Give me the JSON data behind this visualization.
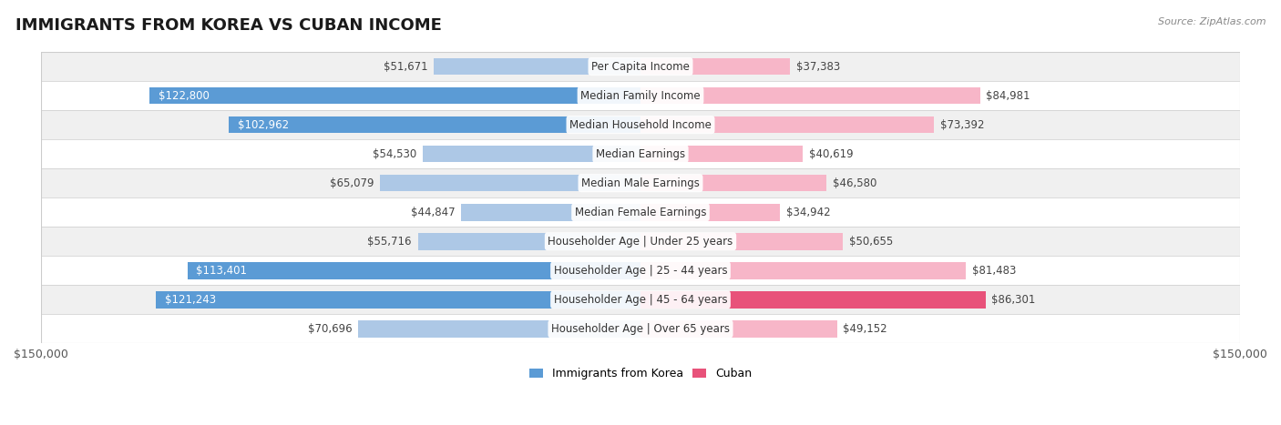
{
  "title": "IMMIGRANTS FROM KOREA VS CUBAN INCOME",
  "source": "Source: ZipAtlas.com",
  "categories": [
    "Per Capita Income",
    "Median Family Income",
    "Median Household Income",
    "Median Earnings",
    "Median Male Earnings",
    "Median Female Earnings",
    "Householder Age | Under 25 years",
    "Householder Age | 25 - 44 years",
    "Householder Age | 45 - 64 years",
    "Householder Age | Over 65 years"
  ],
  "korea_values": [
    51671,
    122800,
    102962,
    54530,
    65079,
    44847,
    55716,
    113401,
    121243,
    70696
  ],
  "cuban_values": [
    37383,
    84981,
    73392,
    40619,
    46580,
    34942,
    50655,
    81483,
    86301,
    49152
  ],
  "korea_labels": [
    "$51,671",
    "$122,800",
    "$102,962",
    "$54,530",
    "$65,079",
    "$44,847",
    "$55,716",
    "$113,401",
    "$121,243",
    "$70,696"
  ],
  "cuban_labels": [
    "$37,383",
    "$84,981",
    "$73,392",
    "$40,619",
    "$46,580",
    "$34,942",
    "$50,655",
    "$81,483",
    "$86,301",
    "$49,152"
  ],
  "korea_color_light": "#adc8e6",
  "korea_color_dark": "#5b9bd5",
  "cuban_color_light": "#f7b6c8",
  "cuban_color_dark": "#e8527a",
  "korea_inside_threshold": 80000,
  "cuban_inside_threshold": 999999,
  "max_value": 150000,
  "bar_height": 0.58,
  "background_color": "#ffffff",
  "row_bg_alt": "#f0f0f0",
  "title_fontsize": 13,
  "label_fontsize": 8.5,
  "category_fontsize": 8.5,
  "legend_fontsize": 9,
  "axis_label": "$150,000",
  "dark_threshold": 85000
}
